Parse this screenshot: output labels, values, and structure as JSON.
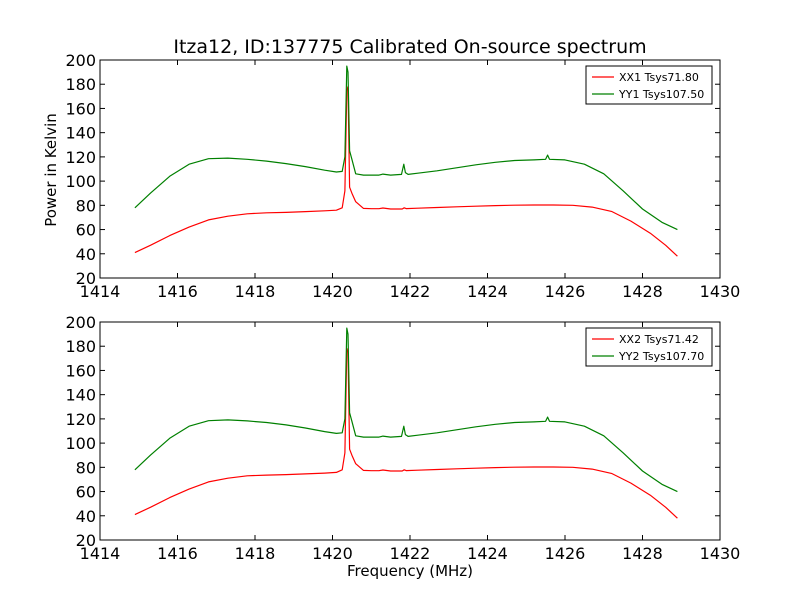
{
  "chart_data": [
    {
      "type": "line",
      "title": "Itza12, ID:137775 Calibrated On-source spectrum",
      "xlabel": "",
      "ylabel": "Power in Kelvin",
      "xlim": [
        1414,
        1430
      ],
      "ylim": [
        20,
        200
      ],
      "xticks": [
        "1414",
        "1416",
        "1418",
        "1420",
        "1422",
        "1424",
        "1426",
        "1428",
        "1430"
      ],
      "yticks": [
        "20",
        "40",
        "60",
        "80",
        "100",
        "120",
        "140",
        "160",
        "180",
        "200"
      ],
      "legend_position": "top-right",
      "series": [
        {
          "name": "XX1 Tsys71.80",
          "color": "#ff0000",
          "x": [
            1414.9,
            1415.3,
            1415.8,
            1416.3,
            1416.8,
            1417.3,
            1417.8,
            1418.3,
            1418.8,
            1419.3,
            1419.8,
            1420.1,
            1420.25,
            1420.32,
            1420.37,
            1420.4,
            1420.44,
            1420.5,
            1420.6,
            1420.8,
            1421.0,
            1421.2,
            1421.3,
            1421.5,
            1421.8,
            1421.85,
            1421.9,
            1422.2,
            1422.7,
            1423.2,
            1423.7,
            1424.2,
            1424.7,
            1425.2,
            1425.7,
            1426.2,
            1426.7,
            1427.2,
            1427.7,
            1428.2,
            1428.6,
            1428.9
          ],
          "values": [
            41,
            47,
            55,
            62,
            68,
            71,
            73,
            73.8,
            74.2,
            74.8,
            75.5,
            76,
            78,
            92,
            175,
            178,
            95,
            90,
            83,
            77.5,
            77.2,
            77.2,
            77.8,
            77,
            77,
            78,
            77.3,
            77.6,
            78.2,
            78.8,
            79.3,
            79.8,
            80.1,
            80.3,
            80.3,
            80,
            78.5,
            75,
            67,
            57,
            47,
            38
          ]
        },
        {
          "name": "YY1 Tsys107.50",
          "color": "#008000",
          "x": [
            1414.9,
            1415.3,
            1415.8,
            1416.3,
            1416.8,
            1417.3,
            1417.8,
            1418.3,
            1418.8,
            1419.3,
            1419.8,
            1420.1,
            1420.25,
            1420.32,
            1420.37,
            1420.4,
            1420.44,
            1420.5,
            1420.6,
            1420.8,
            1421.0,
            1421.2,
            1421.3,
            1421.5,
            1421.78,
            1421.84,
            1421.88,
            1421.95,
            1422.2,
            1422.7,
            1423.2,
            1423.7,
            1424.2,
            1424.7,
            1425.2,
            1425.5,
            1425.55,
            1425.6,
            1426.0,
            1426.5,
            1427.0,
            1427.5,
            1428.0,
            1428.5,
            1428.9
          ],
          "values": [
            78,
            90,
            104,
            114,
            118.5,
            119,
            118,
            116.5,
            114.5,
            112,
            109,
            107.5,
            108,
            120,
            195,
            190,
            125,
            118,
            106,
            105,
            105,
            105,
            105.8,
            105,
            105.5,
            114,
            107,
            105.5,
            106.5,
            108.5,
            111,
            113.5,
            115.5,
            117,
            117.5,
            118,
            121.5,
            118,
            117.5,
            114,
            106,
            92,
            77,
            66,
            60
          ]
        }
      ]
    },
    {
      "type": "line",
      "title": "",
      "xlabel": "Frequency (MHz)",
      "ylabel": "",
      "xlim": [
        1414,
        1430
      ],
      "ylim": [
        20,
        200
      ],
      "xticks": [
        "1414",
        "1416",
        "1418",
        "1420",
        "1422",
        "1424",
        "1426",
        "1428",
        "1430"
      ],
      "yticks": [
        "20",
        "40",
        "60",
        "80",
        "100",
        "120",
        "140",
        "160",
        "180",
        "200"
      ],
      "legend_position": "top-right",
      "series": [
        {
          "name": "XX2 Tsys71.42",
          "color": "#ff0000",
          "x": [
            1414.9,
            1415.3,
            1415.8,
            1416.3,
            1416.8,
            1417.3,
            1417.8,
            1418.3,
            1418.8,
            1419.3,
            1419.8,
            1420.1,
            1420.25,
            1420.32,
            1420.37,
            1420.4,
            1420.44,
            1420.5,
            1420.6,
            1420.8,
            1421.0,
            1421.2,
            1421.3,
            1421.5,
            1421.8,
            1421.85,
            1421.9,
            1422.2,
            1422.7,
            1423.2,
            1423.7,
            1424.2,
            1424.7,
            1425.2,
            1425.7,
            1426.2,
            1426.7,
            1427.2,
            1427.7,
            1428.2,
            1428.6,
            1428.9
          ],
          "values": [
            41,
            47,
            55,
            62,
            68,
            71,
            73,
            73.6,
            74,
            74.6,
            75.2,
            75.8,
            78,
            92,
            178,
            175,
            95,
            90,
            83,
            77.5,
            77.2,
            77.2,
            77.8,
            77,
            77,
            78,
            77.3,
            77.6,
            78.2,
            78.8,
            79.3,
            79.8,
            80.1,
            80.3,
            80.3,
            80,
            78.5,
            75,
            67,
            57,
            47,
            38
          ]
        },
        {
          "name": "YY2 Tsys107.70",
          "color": "#008000",
          "x": [
            1414.9,
            1415.3,
            1415.8,
            1416.3,
            1416.8,
            1417.3,
            1417.8,
            1418.3,
            1418.8,
            1419.3,
            1419.8,
            1420.1,
            1420.25,
            1420.32,
            1420.37,
            1420.4,
            1420.44,
            1420.5,
            1420.6,
            1420.8,
            1421.0,
            1421.2,
            1421.3,
            1421.5,
            1421.78,
            1421.84,
            1421.88,
            1421.95,
            1422.2,
            1422.7,
            1423.2,
            1423.7,
            1424.2,
            1424.7,
            1425.2,
            1425.5,
            1425.55,
            1425.6,
            1426.0,
            1426.5,
            1427.0,
            1427.5,
            1428.0,
            1428.5,
            1428.9
          ],
          "values": [
            78,
            90,
            104,
            114,
            118.5,
            119.2,
            118.3,
            117,
            115,
            112.5,
            109.5,
            108,
            108.5,
            120,
            195,
            190,
            125,
            118,
            106,
            105,
            105,
            105,
            105.8,
            105,
            105.5,
            114,
            107,
            105.5,
            106.5,
            108.5,
            111,
            113.5,
            115.5,
            117,
            117.5,
            118,
            121.5,
            118,
            117.5,
            114,
            106,
            92,
            77,
            66,
            60
          ]
        }
      ]
    }
  ]
}
